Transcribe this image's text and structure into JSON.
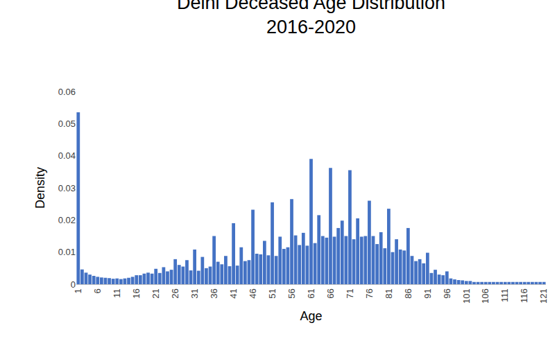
{
  "chart_data": {
    "type": "bar",
    "title": "Delhi Deceased Age Distribution",
    "subtitle": "2016-2020",
    "x_label": "Age",
    "y_label": "Density",
    "color": "#4472c4",
    "grid": false,
    "x": [
      1,
      2,
      3,
      4,
      5,
      6,
      7,
      8,
      9,
      10,
      11,
      12,
      13,
      14,
      15,
      16,
      17,
      18,
      19,
      20,
      21,
      22,
      23,
      24,
      25,
      26,
      27,
      28,
      29,
      30,
      31,
      32,
      33,
      34,
      35,
      36,
      37,
      38,
      39,
      40,
      41,
      42,
      43,
      44,
      45,
      46,
      47,
      48,
      49,
      50,
      51,
      52,
      53,
      54,
      55,
      56,
      57,
      58,
      59,
      60,
      61,
      62,
      63,
      64,
      65,
      66,
      67,
      68,
      69,
      70,
      71,
      72,
      73,
      74,
      75,
      76,
      77,
      78,
      79,
      80,
      81,
      82,
      83,
      84,
      85,
      86,
      87,
      88,
      89,
      90,
      91,
      92,
      93,
      94,
      95,
      96,
      97,
      98,
      99,
      100,
      101,
      102,
      103,
      104,
      105,
      106,
      107,
      108,
      109,
      110,
      111,
      112,
      113,
      114,
      115,
      116,
      117,
      118,
      119,
      120,
      121
    ],
    "values": [
      0.0535,
      0.0046,
      0.0036,
      0.003,
      0.0026,
      0.0023,
      0.0021,
      0.002,
      0.0019,
      0.0017,
      0.0018,
      0.0016,
      0.0018,
      0.002,
      0.0023,
      0.0028,
      0.0028,
      0.0033,
      0.0036,
      0.0033,
      0.0048,
      0.0035,
      0.0053,
      0.004,
      0.0045,
      0.0078,
      0.006,
      0.0055,
      0.0075,
      0.0043,
      0.0108,
      0.0042,
      0.0085,
      0.005,
      0.0055,
      0.015,
      0.007,
      0.0062,
      0.0088,
      0.0056,
      0.019,
      0.0058,
      0.0115,
      0.0072,
      0.0075,
      0.0232,
      0.0095,
      0.0093,
      0.0135,
      0.009,
      0.0255,
      0.0088,
      0.0148,
      0.011,
      0.0115,
      0.0265,
      0.0152,
      0.0122,
      0.016,
      0.012,
      0.039,
      0.0128,
      0.0215,
      0.015,
      0.0145,
      0.0362,
      0.0148,
      0.0175,
      0.0198,
      0.015,
      0.0355,
      0.014,
      0.0205,
      0.0148,
      0.015,
      0.026,
      0.015,
      0.0125,
      0.0162,
      0.0112,
      0.0235,
      0.01,
      0.014,
      0.0108,
      0.0105,
      0.0175,
      0.0088,
      0.0072,
      0.0078,
      0.0065,
      0.0098,
      0.0035,
      0.0045,
      0.003,
      0.0028,
      0.004,
      0.0018,
      0.0015,
      0.0013,
      0.0012,
      0.001,
      0.001,
      0.0007,
      0.0007,
      0.0007,
      0.0007,
      0.0007,
      0.0007,
      0.0007,
      0.0007,
      0.0007,
      0.0007,
      0.0007,
      0.0007,
      0.0007,
      0.0007,
      0.0007,
      0.0007,
      0.0007,
      0.0007,
      0.0007
    ],
    "xlim": [
      0.5,
      121.5
    ],
    "xticks": [
      1,
      6,
      11,
      16,
      21,
      26,
      31,
      36,
      41,
      46,
      51,
      56,
      61,
      66,
      71,
      76,
      81,
      86,
      91,
      96,
      101,
      106,
      111,
      116,
      121
    ],
    "ylim": [
      0,
      0.06
    ],
    "yticks": [
      0,
      0.01,
      0.02,
      0.03,
      0.04,
      0.05,
      0.06
    ]
  }
}
